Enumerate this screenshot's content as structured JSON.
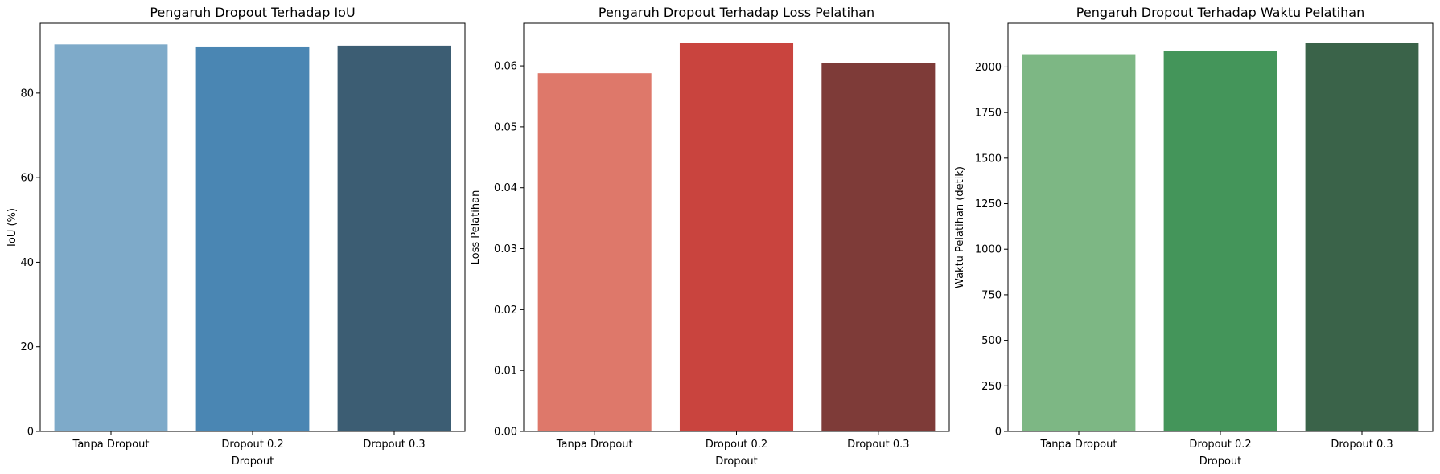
{
  "chart_data": [
    {
      "type": "bar",
      "title": "Pengaruh Dropout Terhadap IoU",
      "xlabel": "Dropout",
      "ylabel": "IoU (%)",
      "categories": [
        "Tanpa Dropout",
        "Dropout 0.2",
        "Dropout 0.3"
      ],
      "values": [
        91.5,
        91.0,
        91.2
      ],
      "colors": [
        "#7eaac9",
        "#4a86b3",
        "#3c5d73"
      ],
      "ylim": [
        0,
        96.5
      ],
      "yticks": [
        0,
        20,
        40,
        60,
        80
      ],
      "ytick_labels": [
        "0",
        "20",
        "40",
        "60",
        "80"
      ]
    },
    {
      "type": "bar",
      "title": "Pengaruh Dropout Terhadap Loss Pelatihan",
      "xlabel": "Dropout",
      "ylabel": "Loss Pelatihan",
      "categories": [
        "Tanpa Dropout",
        "Dropout 0.2",
        "Dropout 0.3"
      ],
      "values": [
        0.0588,
        0.0638,
        0.0605
      ],
      "colors": [
        "#de786a",
        "#c9443e",
        "#7e3b38"
      ],
      "ylim": [
        0,
        0.067
      ],
      "yticks": [
        0,
        0.01,
        0.02,
        0.03,
        0.04,
        0.05,
        0.06
      ],
      "ytick_labels": [
        "0.00",
        "0.01",
        "0.02",
        "0.03",
        "0.04",
        "0.05",
        "0.06"
      ]
    },
    {
      "type": "bar",
      "title": "Pengaruh Dropout Terhadap Waktu Pelatihan",
      "xlabel": "Dropout",
      "ylabel": "Waktu Pelatihan (detik)",
      "categories": [
        "Tanpa Dropout",
        "Dropout 0.2",
        "Dropout 0.3"
      ],
      "values": [
        2070,
        2090,
        2133
      ],
      "colors": [
        "#7db784",
        "#44955a",
        "#3a6349"
      ],
      "ylim": [
        0,
        2240
      ],
      "yticks": [
        0,
        250,
        500,
        750,
        1000,
        1250,
        1500,
        1750,
        2000
      ],
      "ytick_labels": [
        "0",
        "250",
        "500",
        "750",
        "1000",
        "1250",
        "1500",
        "1750",
        "2000"
      ]
    }
  ]
}
